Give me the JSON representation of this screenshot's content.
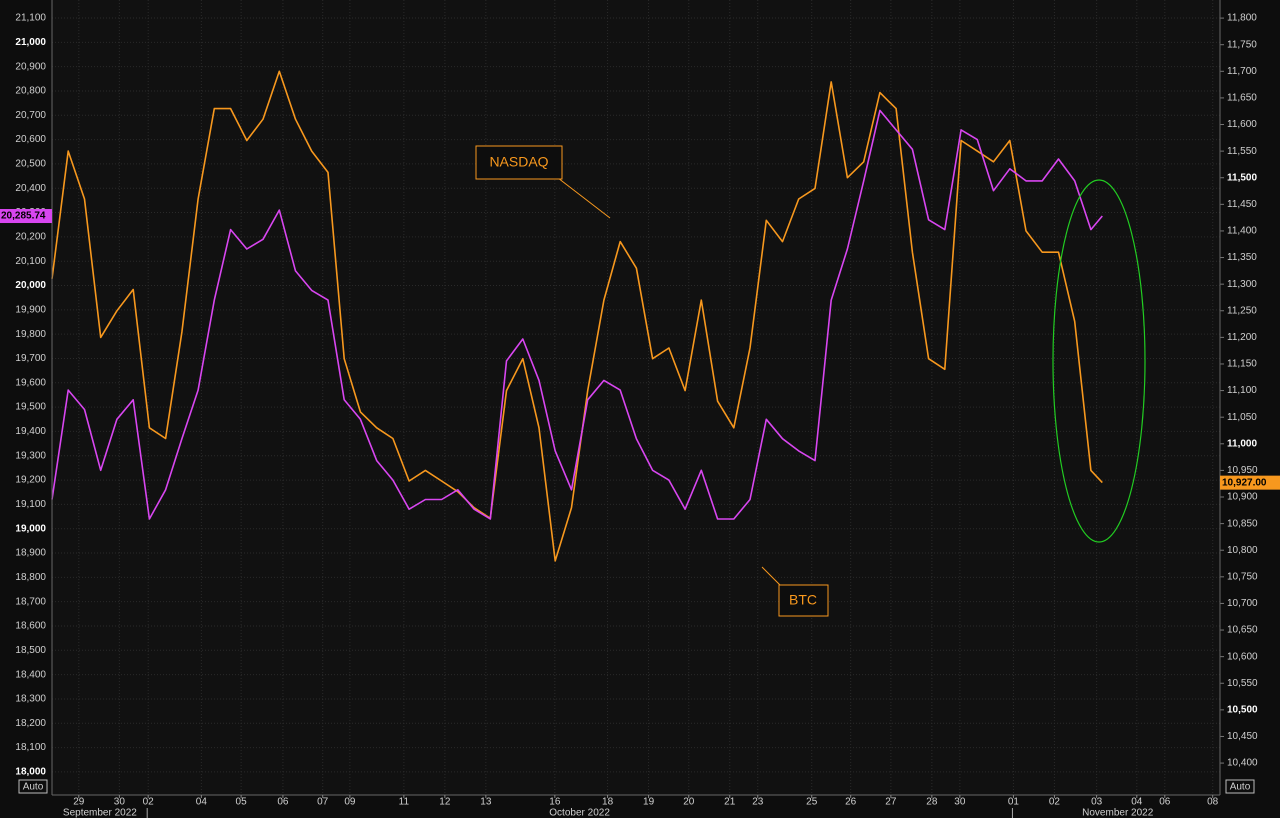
{
  "chart_data": {
    "type": "line",
    "x": [
      0,
      0.4,
      0.8,
      1.2,
      1.6,
      2,
      2.4,
      2.8,
      3.2,
      3.6,
      4,
      4.4,
      4.8,
      5.2,
      5.6,
      6,
      6.4,
      6.8,
      7.2,
      7.6,
      8,
      8.4,
      8.8,
      9.2,
      9.6,
      10,
      10.4,
      10.8,
      11.2,
      11.6,
      12,
      12.4,
      12.8,
      13.2,
      13.6,
      14,
      14.4,
      14.8,
      15.2,
      15.6,
      16,
      16.4,
      16.8,
      17.2,
      17.6,
      18,
      18.4,
      18.8,
      19.2,
      19.6,
      20,
      20.4,
      20.8,
      21.2,
      21.6,
      22,
      22.4,
      22.8,
      23.2,
      23.6,
      24,
      24.4,
      24.8,
      25.2,
      25.6,
      25.88
    ],
    "series": [
      {
        "name": "BTC",
        "color": "#d846f0",
        "axis": "y",
        "last_value_label": "20,285.74",
        "values": [
          19120,
          19570,
          19490,
          19240,
          19450,
          19530,
          19040,
          19160,
          19370,
          19570,
          19940,
          20230,
          20150,
          20190,
          20310,
          20060,
          19980,
          19940,
          19530,
          19450,
          19280,
          19200,
          19080,
          19120,
          19120,
          19160,
          19080,
          19040,
          19690,
          19780,
          19610,
          19320,
          19160,
          19530,
          19610,
          19570,
          19370,
          19240,
          19200,
          19080,
          19240,
          19040,
          19040,
          19120,
          19450,
          19370,
          19320,
          19280,
          19940,
          20150,
          20430,
          20720,
          20640,
          20560,
          20270,
          20230,
          20640,
          20600,
          20390,
          20480,
          20430,
          20430,
          20520,
          20430,
          20230,
          20285.74
        ]
      },
      {
        "name": "NASDAQ",
        "color": "#f7981e",
        "axis": "y2",
        "last_value_label": "10,927.00",
        "values": [
          11310,
          11550,
          11460,
          11200,
          11250,
          11290,
          11030,
          11010,
          11210,
          11460,
          11630,
          11630,
          11570,
          11610,
          11700,
          11610,
          11550,
          11510,
          11160,
          11060,
          11030,
          11010,
          10930,
          10950,
          10930,
          10910,
          10880,
          10860,
          11100,
          11160,
          11030,
          10780,
          10880,
          11100,
          11270,
          11380,
          11330,
          11160,
          11180,
          11100,
          11270,
          11080,
          11030,
          11180,
          11420,
          11380,
          11460,
          11480,
          11680,
          11500,
          11530,
          11660,
          11630,
          11360,
          11160,
          11140,
          11570,
          11550,
          11530,
          11570,
          11400,
          11360,
          11360,
          11230,
          10950,
          10927
        ]
      }
    ],
    "xlim": [
      0,
      28.78
    ],
    "xticks": [
      {
        "value": 0.66,
        "label": "29"
      },
      {
        "value": 1.66,
        "label": "30"
      },
      {
        "value": 2.37,
        "label": "02"
      },
      {
        "value": 3.68,
        "label": "04"
      },
      {
        "value": 4.66,
        "label": "05"
      },
      {
        "value": 5.69,
        "label": "06"
      },
      {
        "value": 6.67,
        "label": "07"
      },
      {
        "value": 7.34,
        "label": "09"
      },
      {
        "value": 8.67,
        "label": "11"
      },
      {
        "value": 9.68,
        "label": "12"
      },
      {
        "value": 10.69,
        "label": "13"
      },
      {
        "value": 12.39,
        "label": "16"
      },
      {
        "value": 13.69,
        "label": "18"
      },
      {
        "value": 14.7,
        "label": "19"
      },
      {
        "value": 15.69,
        "label": "20"
      },
      {
        "value": 16.7,
        "label": "21"
      },
      {
        "value": 17.39,
        "label": "23"
      },
      {
        "value": 18.72,
        "label": "25"
      },
      {
        "value": 19.68,
        "label": "26"
      },
      {
        "value": 20.67,
        "label": "27"
      },
      {
        "value": 21.68,
        "label": "28"
      },
      {
        "value": 22.37,
        "label": "30"
      },
      {
        "value": 23.69,
        "label": "01"
      },
      {
        "value": 24.7,
        "label": "02"
      },
      {
        "value": 25.74,
        "label": "03"
      },
      {
        "value": 26.73,
        "label": "04"
      },
      {
        "value": 27.42,
        "label": "06"
      },
      {
        "value": 28.6,
        "label": "08"
      }
    ],
    "x_month_labels": [
      {
        "value": 1.18,
        "label": "September 2022"
      },
      {
        "value": 13.0,
        "label": "October 2022"
      },
      {
        "value": 26.26,
        "label": "November 2022"
      }
    ],
    "x_month_breaks": [
      2.37,
      23.69
    ],
    "ylim": [
      17905,
      21174
    ],
    "yticks": [
      {
        "value": 18000,
        "label": "18,000"
      },
      {
        "value": 18100,
        "label": "18,100"
      },
      {
        "value": 18200,
        "label": "18,200"
      },
      {
        "value": 18300,
        "label": "18,300"
      },
      {
        "value": 18400,
        "label": "18,400"
      },
      {
        "value": 18500,
        "label": "18,500"
      },
      {
        "value": 18600,
        "label": "18,600"
      },
      {
        "value": 18700,
        "label": "18,700"
      },
      {
        "value": 18800,
        "label": "18,800"
      },
      {
        "value": 18900,
        "label": "18,900"
      },
      {
        "value": 19000,
        "label": "19,000"
      },
      {
        "value": 19100,
        "label": "19,100"
      },
      {
        "value": 19200,
        "label": "19,200"
      },
      {
        "value": 19300,
        "label": "19,300"
      },
      {
        "value": 19400,
        "label": "19,400"
      },
      {
        "value": 19500,
        "label": "19,500"
      },
      {
        "value": 19600,
        "label": "19,600"
      },
      {
        "value": 19700,
        "label": "19,700"
      },
      {
        "value": 19800,
        "label": "19,800"
      },
      {
        "value": 19900,
        "label": "19,900"
      },
      {
        "value": 20000,
        "label": "20,000"
      },
      {
        "value": 20100,
        "label": "20,100"
      },
      {
        "value": 20200,
        "label": "20,200"
      },
      {
        "value": 20300,
        "label": "20,300"
      },
      {
        "value": 20400,
        "label": "20,400"
      },
      {
        "value": 20500,
        "label": "20,500"
      },
      {
        "value": 20600,
        "label": "20,600"
      },
      {
        "value": 20700,
        "label": "20,700"
      },
      {
        "value": 20800,
        "label": "20,800"
      },
      {
        "value": 20900,
        "label": "20,900"
      },
      {
        "value": 21000,
        "label": "21,000"
      },
      {
        "value": 21100,
        "label": "21,100"
      }
    ],
    "ytick_major_step": 1000,
    "y2lim": [
      10340,
      11834
    ],
    "y2ticks": [
      {
        "value": 10400,
        "label": "10,400"
      },
      {
        "value": 10450,
        "label": "10,450"
      },
      {
        "value": 10500,
        "label": "10,500"
      },
      {
        "value": 10550,
        "label": "10,550"
      },
      {
        "value": 10600,
        "label": "10,600"
      },
      {
        "value": 10650,
        "label": "10,650"
      },
      {
        "value": 10700,
        "label": "10,700"
      },
      {
        "value": 10750,
        "label": "10,750"
      },
      {
        "value": 10800,
        "label": "10,800"
      },
      {
        "value": 10850,
        "label": "10,850"
      },
      {
        "value": 10900,
        "label": "10,900"
      },
      {
        "value": 10950,
        "label": "10,950"
      },
      {
        "value": 11000,
        "label": "11,000"
      },
      {
        "value": 11050,
        "label": "11,050"
      },
      {
        "value": 11100,
        "label": "11,100"
      },
      {
        "value": 11150,
        "label": "11,150"
      },
      {
        "value": 11200,
        "label": "11,200"
      },
      {
        "value": 11250,
        "label": "11,250"
      },
      {
        "value": 11300,
        "label": "11,300"
      },
      {
        "value": 11350,
        "label": "11,350"
      },
      {
        "value": 11400,
        "label": "11,400"
      },
      {
        "value": 11450,
        "label": "11,450"
      },
      {
        "value": 11500,
        "label": "11,500"
      },
      {
        "value": 11550,
        "label": "11,550"
      },
      {
        "value": 11600,
        "label": "11,600"
      },
      {
        "value": 11650,
        "label": "11,650"
      },
      {
        "value": 11700,
        "label": "11,700"
      },
      {
        "value": 11750,
        "label": "11,750"
      },
      {
        "value": 11800,
        "label": "11,800"
      }
    ],
    "y2tick_major_step": 500,
    "grid": true,
    "scale_mode": "Auto"
  }
}
